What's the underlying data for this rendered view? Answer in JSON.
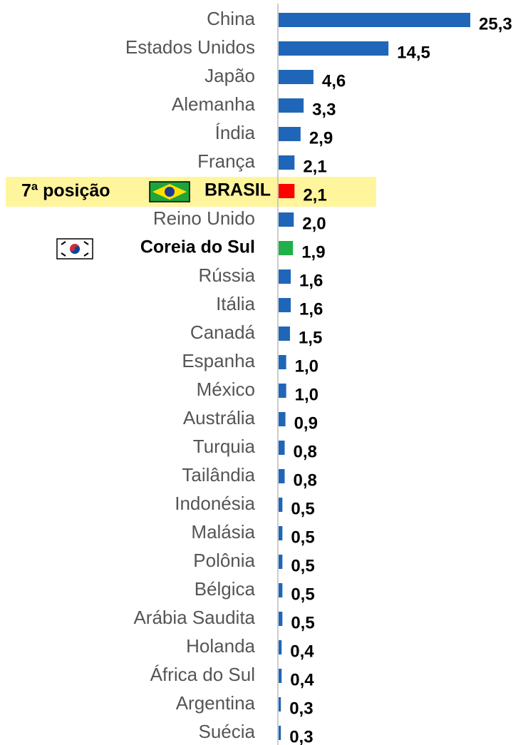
{
  "chart_data": {
    "type": "barh",
    "categories": [
      "China",
      "Estados Unidos",
      "Japão",
      "Alemanha",
      "Índia",
      "França",
      "BRASIL",
      "Reino Unido",
      "Coreia do Sul",
      "Rússia",
      "Itália",
      "Canadá",
      "Espanha",
      "México",
      "Austrália",
      "Turquia",
      "Tailândia",
      "Indonésia",
      "Malásia",
      "Polônia",
      "Bélgica",
      "Arábia Saudita",
      "Holanda",
      "África do Sul",
      "Argentina",
      "Suécia"
    ],
    "values": [
      25.3,
      14.5,
      4.6,
      3.3,
      2.9,
      2.1,
      2.1,
      2.0,
      1.9,
      1.6,
      1.6,
      1.5,
      1.0,
      1.0,
      0.9,
      0.8,
      0.8,
      0.5,
      0.5,
      0.5,
      0.5,
      0.5,
      0.4,
      0.4,
      0.3,
      0.3
    ],
    "value_labels": [
      "25,3",
      "14,5",
      "4,6",
      "3,3",
      "2,9",
      "2,1",
      "2,1",
      "2,0",
      "1,9",
      "1,6",
      "1,6",
      "1,5",
      "1,0",
      "1,0",
      "0,9",
      "0,8",
      "0,8",
      "0,5",
      "0,5",
      "0,5",
      "0,5",
      "0,5",
      "0,4",
      "0,4",
      "0,3",
      "0,3"
    ],
    "colors": [
      "#1f66b8",
      "#1f66b8",
      "#1f66b8",
      "#1f66b8",
      "#1f66b8",
      "#1f66b8",
      "#ff0000",
      "#1f66b8",
      "#1fb04a",
      "#1f66b8",
      "#1f66b8",
      "#1f66b8",
      "#1f66b8",
      "#1f66b8",
      "#1f66b8",
      "#1f66b8",
      "#1f66b8",
      "#1f66b8",
      "#1f66b8",
      "#1f66b8",
      "#1f66b8",
      "#1f66b8",
      "#1f66b8",
      "#1f66b8",
      "#1f66b8",
      "#1f66b8"
    ],
    "xlim": [
      0,
      25.3
    ],
    "annotation": "7ª posição"
  }
}
